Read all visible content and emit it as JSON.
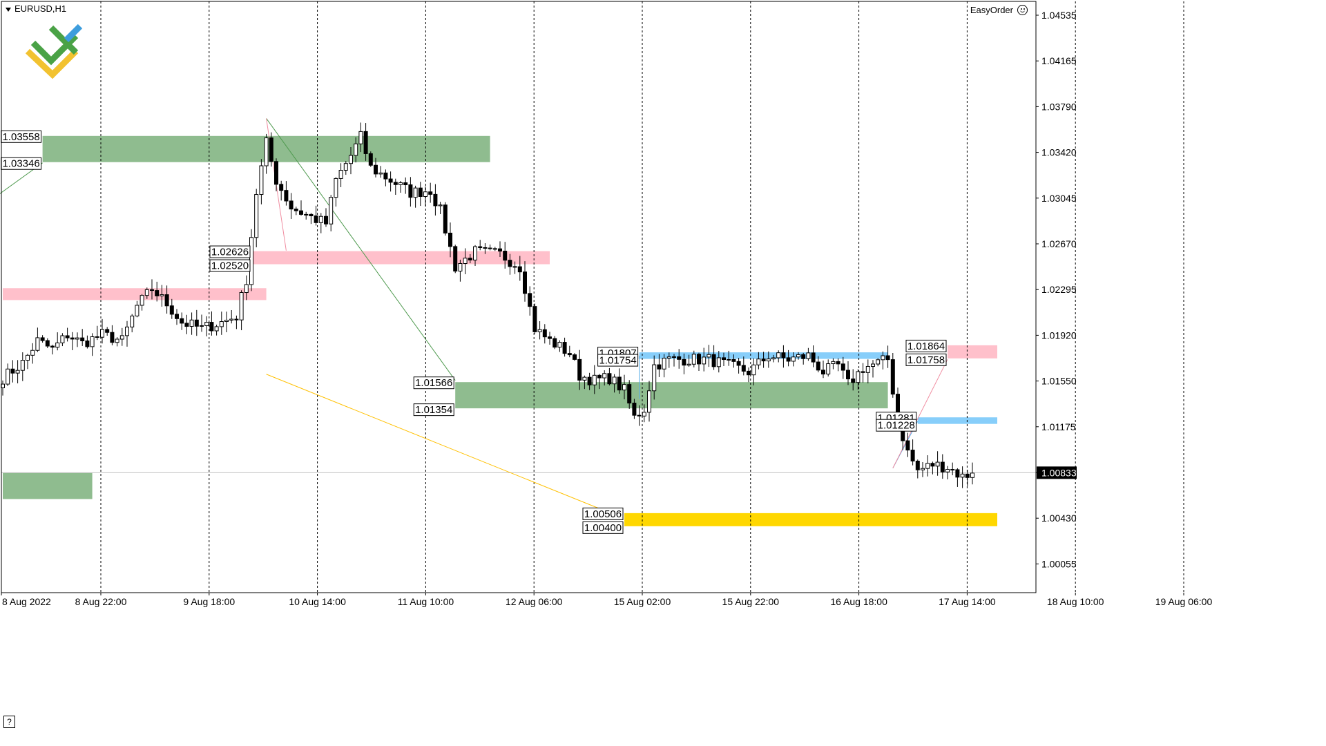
{
  "header": {
    "symbol": "EURUSD,H1",
    "plugin_label": "EasyOrder"
  },
  "help_label": "?",
  "colors": {
    "green_zone": "#8fbc8f",
    "pink_zone": "#ffc0cb",
    "blue_zone": "#87cefa",
    "yellow_zone": "#ffd700",
    "candle_outline": "#000000",
    "grid": "#000000"
  },
  "chart_data": {
    "type": "candlestick",
    "symbol": "EURUSD",
    "timeframe": "H1",
    "ylim": [
      1.0005,
      1.0455
    ],
    "y_ticks": [
      "1.04535",
      "1.04165",
      "1.03790",
      "1.03420",
      "1.03045",
      "1.02670",
      "1.02295",
      "1.01920",
      "1.01550",
      "1.01175",
      "1.00800",
      "1.00430",
      "1.00055"
    ],
    "x_ticks": [
      "8 Aug 2022",
      "8 Aug 22:00",
      "9 Aug 18:00",
      "10 Aug 14:00",
      "11 Aug 10:00",
      "12 Aug 06:00",
      "15 Aug 02:00",
      "15 Aug 22:00",
      "16 Aug 18:00",
      "17 Aug 14:00",
      "18 Aug 10:00",
      "19 Aug 06:00"
    ],
    "current_price": "1.00833",
    "zones": [
      {
        "color": "green",
        "top": 1.03558,
        "bottom": 1.03346,
        "from": 8,
        "to": 98,
        "top_label": "1.03558",
        "bottom_label": "1.03346"
      },
      {
        "color": "pink",
        "top": 1.02326,
        "bottom": 1.0223,
        "from": 0,
        "to": 53
      },
      {
        "color": "pink",
        "top": 1.02626,
        "bottom": 1.0252,
        "from": 50,
        "to": 110,
        "top_label": "1.02626",
        "bottom_label": "1.02520"
      },
      {
        "color": "green",
        "top": 1.01566,
        "bottom": 1.01354,
        "from": 91,
        "to": 178,
        "top_label": "1.01566",
        "bottom_label": "1.01354"
      },
      {
        "color": "blue",
        "top": 1.01807,
        "bottom": 1.01754,
        "from": 128,
        "to": 178,
        "top_label": "1.01807",
        "bottom_label": "1.01754"
      },
      {
        "color": "green",
        "top": 1.00833,
        "bottom": 1.0062,
        "from": 0,
        "to": 18
      },
      {
        "color": "blue",
        "top": 1.01281,
        "bottom": 1.01228,
        "from": 184,
        "to": 200,
        "top_label": "1.01281",
        "bottom_label": "1.01228"
      },
      {
        "color": "pink",
        "top": 1.01864,
        "bottom": 1.01758,
        "from": 190,
        "to": 200,
        "top_label": "1.01864",
        "bottom_label": "1.01758"
      },
      {
        "color": "yellow",
        "top": 1.00506,
        "bottom": 1.004,
        "from": 125,
        "to": 200,
        "top_label": "1.00506",
        "bottom_label": "1.00400"
      }
    ],
    "trend_lines": [
      {
        "color": "green",
        "from": [
          -2,
          1.0305
        ],
        "to": [
          8,
          1.0334
        ]
      },
      {
        "color": "green",
        "from": [
          53,
          1.037
        ],
        "to": [
          91,
          1.0158
        ]
      },
      {
        "color": "pink",
        "from": [
          53,
          1.037
        ],
        "to": [
          57,
          1.0263
        ]
      },
      {
        "color": "yellow",
        "from": [
          53,
          1.0163
        ],
        "to": [
          122,
          1.0051
        ]
      },
      {
        "color": "blue",
        "from": [
          128,
          1.0178
        ],
        "to": [
          128,
          1.0143
        ]
      },
      {
        "color": "blue",
        "from": [
          179,
          1.0087
        ],
        "to": [
          184,
          1.0125
        ]
      },
      {
        "color": "pink",
        "from": [
          179,
          1.0087
        ],
        "to": [
          190,
          1.0175
        ]
      }
    ],
    "anchors": [
      {
        "idx": 0,
        "price": 1.016
      },
      {
        "idx": 4,
        "price": 1.0172
      },
      {
        "idx": 7,
        "price": 1.019
      },
      {
        "idx": 10,
        "price": 1.0183
      },
      {
        "idx": 13,
        "price": 1.0195
      },
      {
        "idx": 16,
        "price": 1.0188
      },
      {
        "idx": 20,
        "price": 1.0195
      },
      {
        "idx": 24,
        "price": 1.019
      },
      {
        "idx": 27,
        "price": 1.0218
      },
      {
        "idx": 30,
        "price": 1.0232
      },
      {
        "idx": 33,
        "price": 1.022
      },
      {
        "idx": 36,
        "price": 1.0205
      },
      {
        "idx": 40,
        "price": 1.02
      },
      {
        "idx": 44,
        "price": 1.0205
      },
      {
        "idx": 47,
        "price": 1.021
      },
      {
        "idx": 49,
        "price": 1.024
      },
      {
        "idx": 51,
        "price": 1.031
      },
      {
        "idx": 53,
        "price": 1.035
      },
      {
        "idx": 55,
        "price": 1.032
      },
      {
        "idx": 58,
        "price": 1.0298
      },
      {
        "idx": 62,
        "price": 1.029
      },
      {
        "idx": 65,
        "price": 1.0285
      },
      {
        "idx": 67,
        "price": 1.032
      },
      {
        "idx": 70,
        "price": 1.034
      },
      {
        "idx": 72,
        "price": 1.0355
      },
      {
        "idx": 74,
        "price": 1.033
      },
      {
        "idx": 78,
        "price": 1.032
      },
      {
        "idx": 82,
        "price": 1.031
      },
      {
        "idx": 86,
        "price": 1.0312
      },
      {
        "idx": 88,
        "price": 1.0295
      },
      {
        "idx": 91,
        "price": 1.025
      },
      {
        "idx": 95,
        "price": 1.0262
      },
      {
        "idx": 100,
        "price": 1.026
      },
      {
        "idx": 104,
        "price": 1.025
      },
      {
        "idx": 107,
        "price": 1.02
      },
      {
        "idx": 110,
        "price": 1.019
      },
      {
        "idx": 114,
        "price": 1.018
      },
      {
        "idx": 116,
        "price": 1.0162
      },
      {
        "idx": 119,
        "price": 1.0158
      },
      {
        "idx": 122,
        "price": 1.016
      },
      {
        "idx": 125,
        "price": 1.015
      },
      {
        "idx": 127,
        "price": 1.0128
      },
      {
        "idx": 129,
        "price": 1.0135
      },
      {
        "idx": 131,
        "price": 1.017
      },
      {
        "idx": 134,
        "price": 1.0175
      },
      {
        "idx": 138,
        "price": 1.0175
      },
      {
        "idx": 142,
        "price": 1.0175
      },
      {
        "idx": 146,
        "price": 1.017
      },
      {
        "idx": 150,
        "price": 1.0165
      },
      {
        "idx": 154,
        "price": 1.0178
      },
      {
        "idx": 158,
        "price": 1.0175
      },
      {
        "idx": 162,
        "price": 1.0178
      },
      {
        "idx": 165,
        "price": 1.0165
      },
      {
        "idx": 168,
        "price": 1.017
      },
      {
        "idx": 170,
        "price": 1.0155
      },
      {
        "idx": 173,
        "price": 1.0168
      },
      {
        "idx": 176,
        "price": 1.0172
      },
      {
        "idx": 178,
        "price": 1.0175
      },
      {
        "idx": 180,
        "price": 1.0125
      },
      {
        "idx": 182,
        "price": 1.01
      },
      {
        "idx": 184,
        "price": 1.0085
      },
      {
        "idx": 187,
        "price": 1.009
      },
      {
        "idx": 190,
        "price": 1.0088
      },
      {
        "idx": 193,
        "price": 1.008
      },
      {
        "idx": 195,
        "price": 1.0083
      }
    ]
  }
}
